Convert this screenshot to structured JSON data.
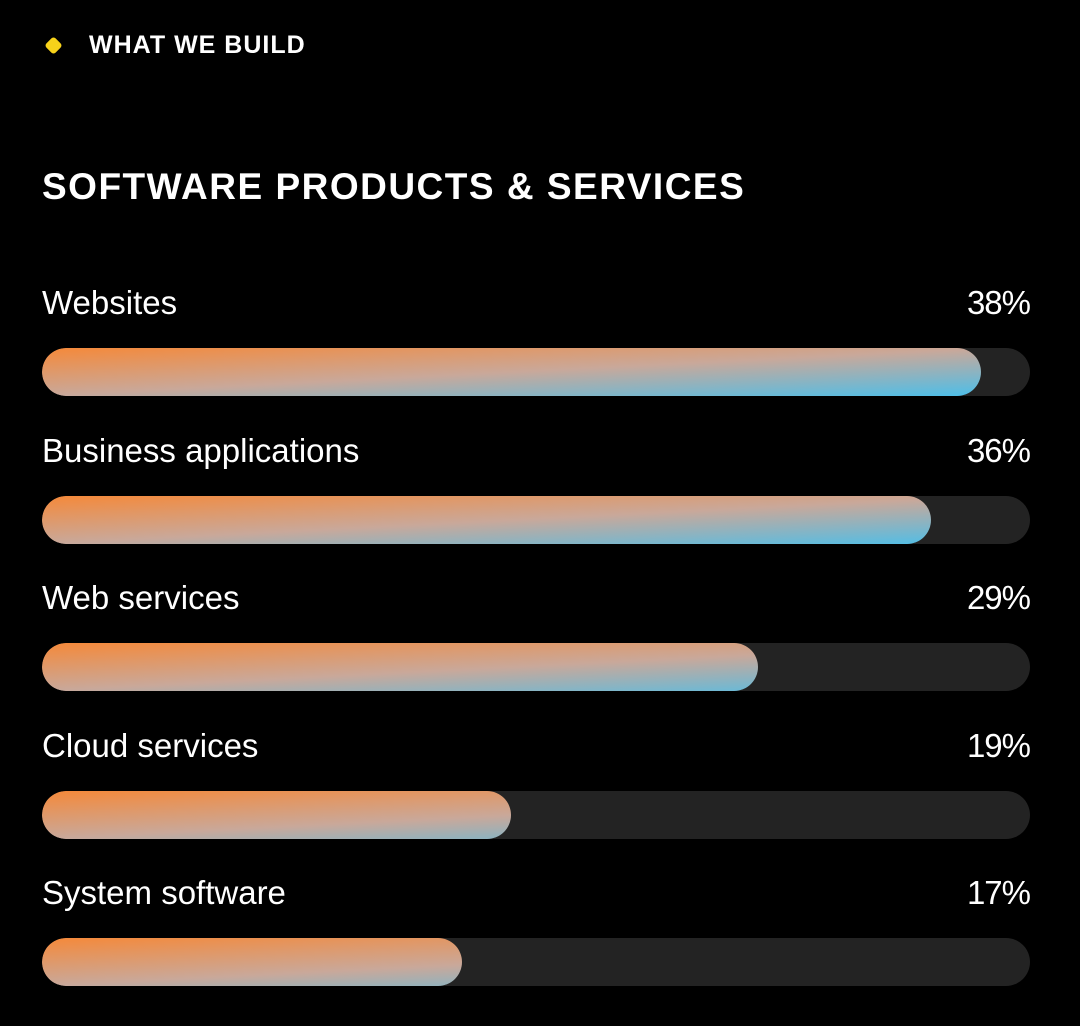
{
  "section": {
    "eyebrow": "WHAT WE BUILD",
    "title": "SOFTWARE PRODUCTS & SERVICES"
  },
  "colors": {
    "background": "#000000",
    "track": "#232323",
    "accent_diamond": "#f7d21a",
    "gradient_start": "#f5893a",
    "gradient_mid": "#c9a89a",
    "gradient_end": "#4bbfea"
  },
  "chart_data": {
    "type": "bar",
    "orientation": "horizontal",
    "categories": [
      "Websites",
      "Business applications",
      "Web services",
      "Cloud services",
      "System software"
    ],
    "values": [
      38,
      36,
      29,
      19,
      17
    ],
    "value_labels": [
      "38%",
      "36%",
      "29%",
      "19%",
      "17%"
    ],
    "unit": "%",
    "xlim": [
      0,
      40
    ],
    "grid": false,
    "legend": "none"
  }
}
